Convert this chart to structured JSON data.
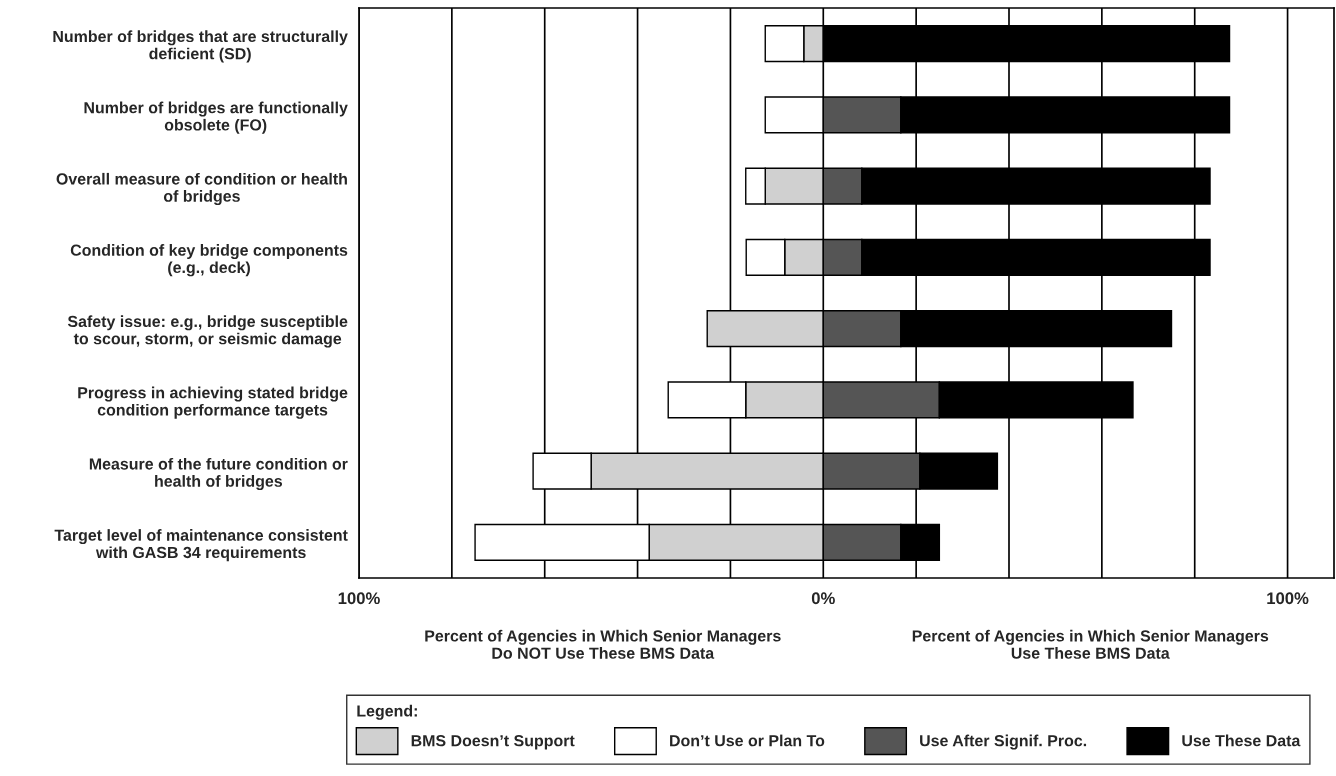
{
  "chart_data": {
    "type": "bar",
    "orientation": "horizontal",
    "stacked": true,
    "categories": [
      "Number of bridges that are structurally\ndeficient (SD)",
      "Number of bridges are functionally\nobsolete (FO)",
      "Overall measure of condition or health\nof bridges",
      "Condition of key bridge components\n(e.g., deck)",
      "Safety issue: e.g., bridge susceptible\nto scour, storm, or seismic damage",
      "Progress in achieving stated bridge\ncondition performance targets",
      "Measure of the future condition or\nhealth of bridges",
      "Target level of maintenance consistent\nwith GASB 34 requirements"
    ],
    "series": [
      {
        "name": "BMS Doesn’t Support",
        "color": "#d0d0d0",
        "values": [
          -4.2,
          0,
          -12.5,
          -8.3,
          -25,
          -16.7,
          -50,
          -37.5
        ]
      },
      {
        "name": "Don’t Use or Plan To",
        "color": "#ffffff",
        "values": [
          -8.3,
          -12.5,
          -4.2,
          -8.3,
          0,
          -16.7,
          -12.5,
          -37.5
        ]
      },
      {
        "name": "Use After Signif. Proc.",
        "color": "#555555",
        "values": [
          0,
          16.7,
          8.3,
          8.3,
          16.7,
          25,
          20.8,
          16.7
        ]
      },
      {
        "name": "Use These Data",
        "color": "#000000",
        "values": [
          87.5,
          70.8,
          75,
          75,
          58.3,
          41.7,
          16.7,
          8.3
        ]
      }
    ],
    "xlim": [
      -100,
      110
    ],
    "xticks": [
      {
        "value": -100,
        "label": "100%"
      },
      {
        "value": -80,
        "label": null
      },
      {
        "value": -60,
        "label": null
      },
      {
        "value": -40,
        "label": null
      },
      {
        "value": -20,
        "label": null
      },
      {
        "value": 0,
        "label": "0%"
      },
      {
        "value": 20,
        "label": null
      },
      {
        "value": 40,
        "label": null
      },
      {
        "value": 60,
        "label": null
      },
      {
        "value": 80,
        "label": null
      },
      {
        "value": 100,
        "label": "100%"
      }
    ],
    "grid": "x",
    "legend": "bottom",
    "legend_title": "Legend:",
    "annotations": [
      "Percent of Agencies in Which Senior Managers\nDo NOT Use These BMS Data",
      "Percent of Agencies in Which Senior Managers\nUse These BMS Data"
    ]
  }
}
